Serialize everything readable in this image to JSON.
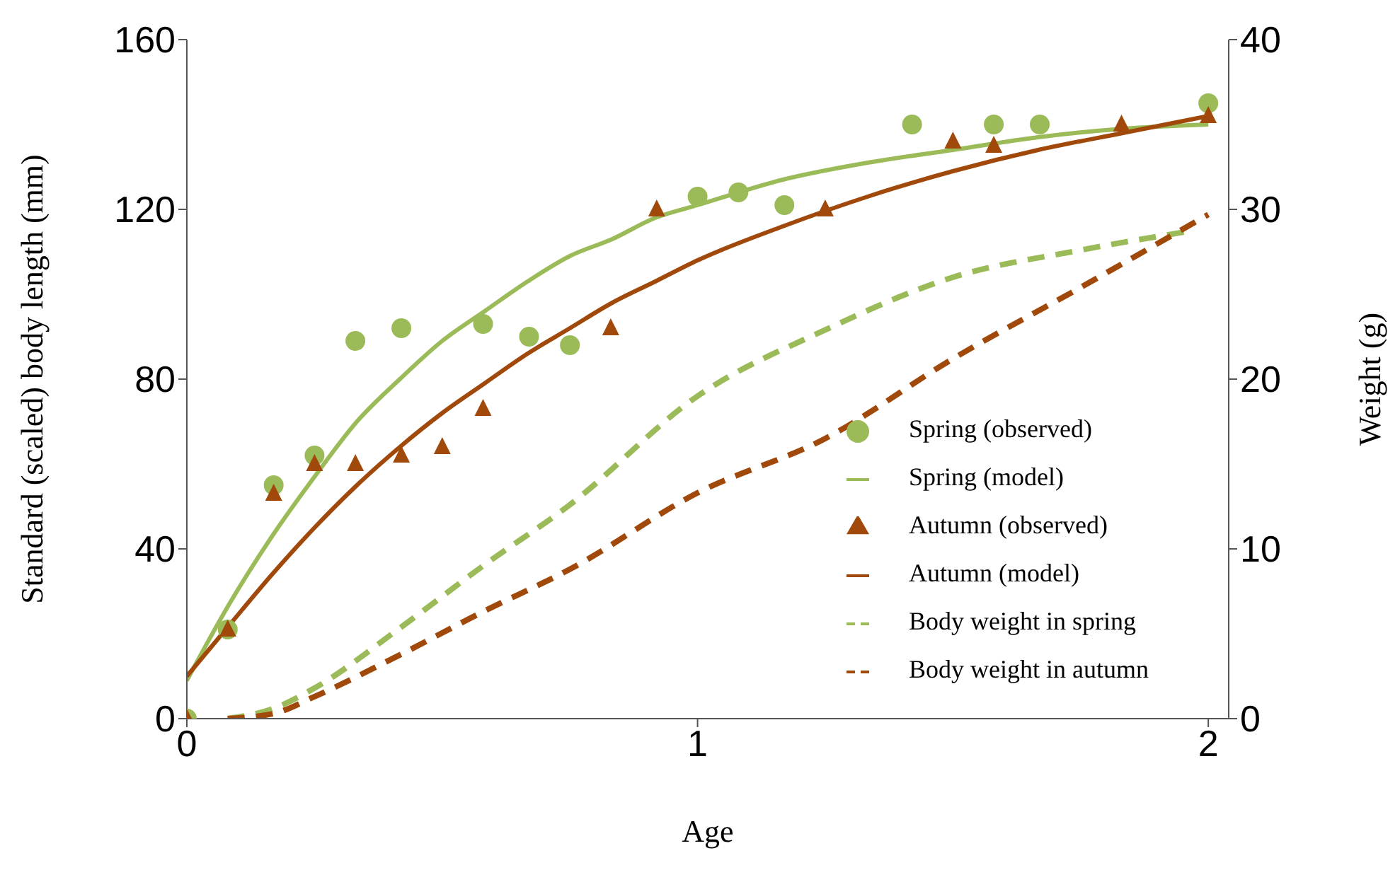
{
  "chart_data": {
    "type": "line",
    "xlabel": "Age",
    "ylabel": "Standard (scaled) body length (mm)",
    "y2label": "Weight (g)",
    "xlim": [
      0,
      2.04
    ],
    "xticks": [
      0,
      1,
      2
    ],
    "ylim": [
      0,
      160
    ],
    "yticks": [
      0,
      40,
      80,
      120,
      160
    ],
    "y2lim": [
      0,
      40
    ],
    "y2ticks": [
      0,
      10,
      20,
      30,
      40
    ],
    "grid": false,
    "legend": "bottom right",
    "series": [
      {
        "name": "Spring (observed)",
        "type": "scatter",
        "marker": "circle",
        "color": "#9bbb59",
        "x": [
          0,
          0.08,
          0.17,
          0.25,
          0.33,
          0.42,
          0.58,
          0.67,
          0.75,
          1.0,
          1.08,
          1.17,
          1.42,
          1.58,
          1.67,
          2.0
        ],
        "values": [
          0,
          21,
          55,
          62,
          89,
          92,
          93,
          90,
          88,
          123,
          124,
          121,
          140,
          140,
          140,
          145
        ]
      },
      {
        "name": "Spring (model)",
        "marker": "none",
        "line_style": "solid",
        "color": "#9bbb59",
        "x": [
          0,
          0.083,
          0.167,
          0.25,
          0.333,
          0.417,
          0.5,
          0.583,
          0.667,
          0.75,
          0.833,
          0.917,
          1.0,
          1.167,
          1.333,
          1.5,
          1.667,
          1.833,
          2.0
        ],
        "values": [
          9,
          27,
          43,
          57,
          70,
          80,
          89,
          96,
          103,
          109,
          113,
          118,
          121,
          127,
          131,
          134,
          137,
          139,
          140
        ]
      },
      {
        "name": "Autumn (observed)",
        "type": "scatter",
        "marker": "triangle",
        "color": "#a0490b",
        "x": [
          0,
          0.08,
          0.17,
          0.25,
          0.33,
          0.42,
          0.5,
          0.58,
          0.83,
          0.92,
          1.25,
          1.5,
          1.58,
          1.83,
          2.0
        ],
        "values": [
          0,
          21,
          53,
          60,
          60,
          62,
          64,
          73,
          92,
          120,
          120,
          136,
          135,
          140,
          142
        ]
      },
      {
        "name": "Autumn (model)",
        "marker": "none",
        "line_style": "solid",
        "color": "#a0490b",
        "x": [
          0,
          0.083,
          0.167,
          0.25,
          0.333,
          0.417,
          0.5,
          0.583,
          0.667,
          0.75,
          0.833,
          0.917,
          1.0,
          1.167,
          1.333,
          1.5,
          1.667,
          1.833,
          2.0
        ],
        "values": [
          10,
          22,
          34,
          45,
          55,
          64,
          72,
          79,
          86,
          92,
          98,
          103,
          108,
          116,
          123,
          129,
          134,
          138,
          142
        ]
      },
      {
        "name": "Body weight in spring",
        "marker": "none",
        "line_style": "dashed",
        "axis": "y2",
        "color": "#9bbb59",
        "x": [
          0.08,
          0.17,
          0.25,
          0.42,
          0.58,
          0.75,
          1.0,
          1.25,
          1.5,
          1.75,
          1.96
        ],
        "values": [
          0,
          0.6,
          1.8,
          5.4,
          9,
          12.6,
          19,
          22.9,
          26,
          27.6,
          28.7
        ]
      },
      {
        "name": "Body weight in autumn",
        "marker": "none",
        "line_style": "dashed",
        "axis": "y2",
        "color": "#a0490b",
        "x": [
          0.08,
          0.17,
          0.25,
          0.42,
          0.58,
          0.75,
          1.0,
          1.25,
          1.5,
          1.75,
          2.0
        ],
        "values": [
          0,
          0.3,
          1.3,
          3.8,
          6.3,
          8.8,
          13.3,
          16.5,
          21.2,
          25.4,
          29.7
        ]
      }
    ]
  }
}
